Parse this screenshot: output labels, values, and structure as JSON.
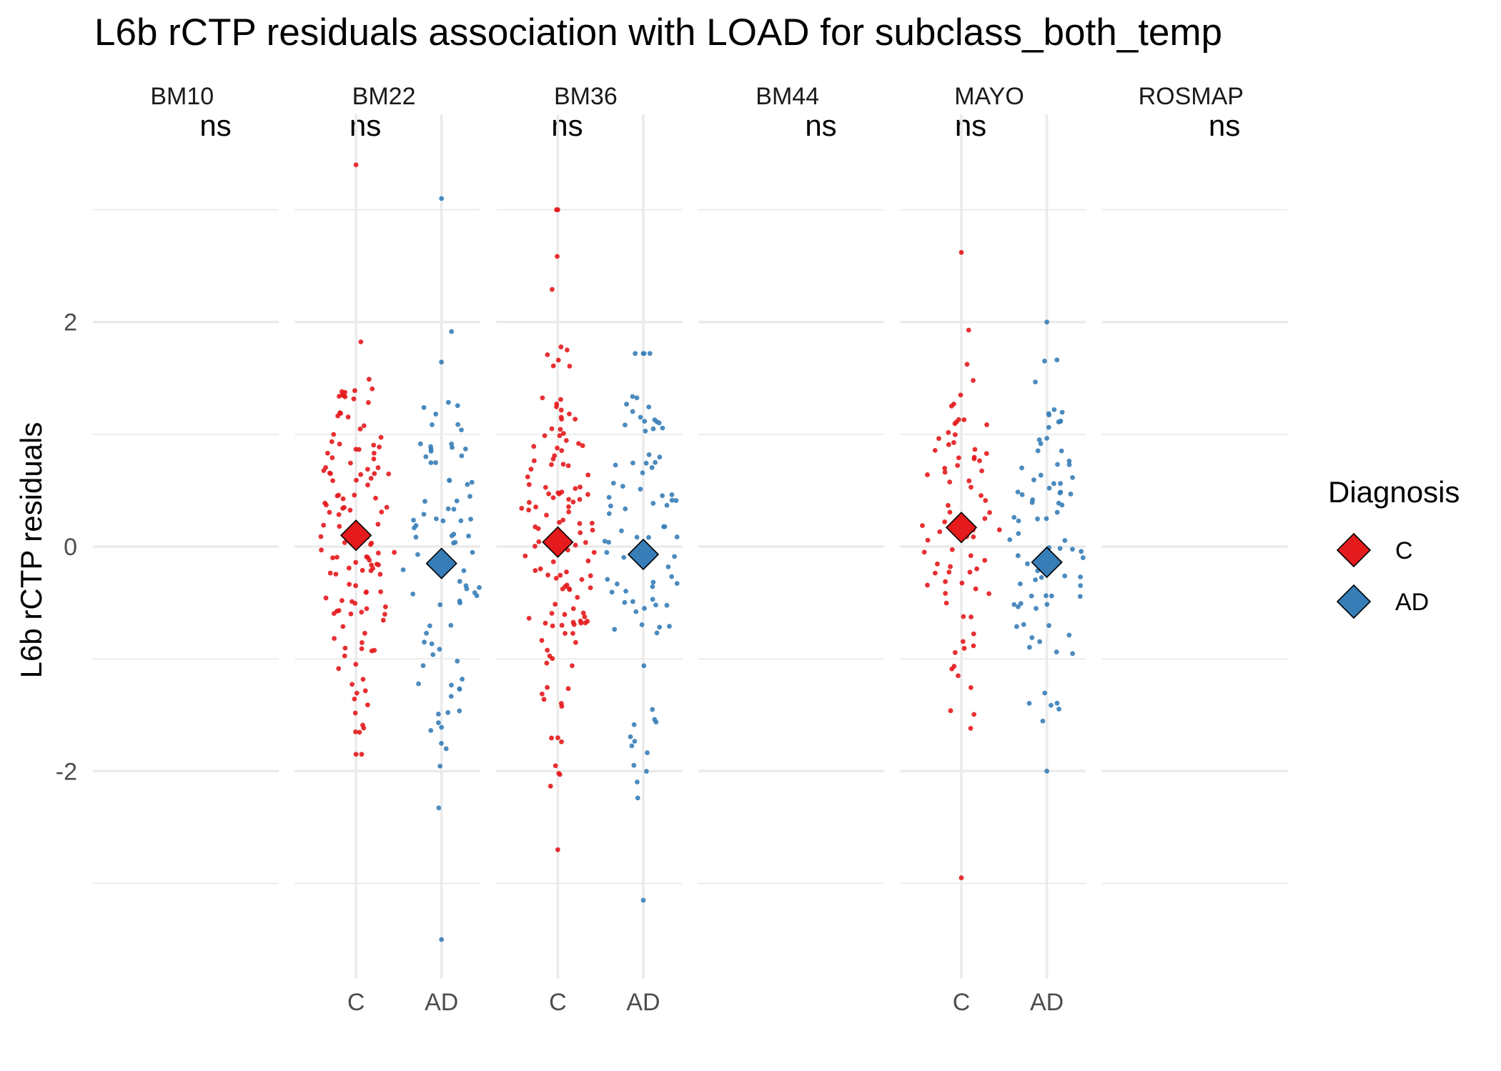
{
  "chart_data": {
    "type": "scatter",
    "title": "L6b rCTP residuals association with LOAD for subclass_both_temp",
    "ylabel": "L6b rCTP residuals",
    "xlabel": "",
    "ylim": [
      -3.85,
      3.85
    ],
    "y_ticks": [
      -2,
      0,
      2
    ],
    "y_tick_labels": [
      "-2",
      "0",
      "2"
    ],
    "grid": true,
    "legend": {
      "title": "Diagnosis",
      "position": "right",
      "entries": [
        {
          "label": "C",
          "color": "#E41A1C"
        },
        {
          "label": "AD",
          "color": "#377EB8"
        }
      ]
    },
    "colors": {
      "C": "#E41A1C",
      "AD": "#377EB8"
    },
    "facets": [
      {
        "name": "BM10",
        "significance": "ns",
        "groups": []
      },
      {
        "name": "BM22",
        "significance": "ns",
        "groups": [
          {
            "label": "C",
            "mean": 0.1,
            "n": 130,
            "max": 3.4,
            "min": -1.85,
            "sd": 0.85
          },
          {
            "label": "AD",
            "mean": -0.15,
            "n": 85,
            "max": 3.1,
            "min": -3.5,
            "sd": 0.95
          }
        ]
      },
      {
        "name": "BM36",
        "significance": "ns",
        "groups": [
          {
            "label": "C",
            "mean": 0.04,
            "n": 130,
            "max": 3.0,
            "min": -2.7,
            "sd": 0.85
          },
          {
            "label": "AD",
            "mean": -0.07,
            "n": 85,
            "max": 1.72,
            "min": -3.15,
            "sd": 0.9
          }
        ]
      },
      {
        "name": "BM44",
        "significance": "ns",
        "groups": []
      },
      {
        "name": "MAYO",
        "significance": "ns",
        "groups": [
          {
            "label": "C",
            "mean": 0.17,
            "n": 80,
            "max": 2.62,
            "min": -2.95,
            "sd": 0.9
          },
          {
            "label": "AD",
            "mean": -0.14,
            "n": 85,
            "max": 2.0,
            "min": -2.0,
            "sd": 0.85
          }
        ]
      },
      {
        "name": "ROSMAP",
        "significance": "ns",
        "groups": []
      }
    ]
  }
}
